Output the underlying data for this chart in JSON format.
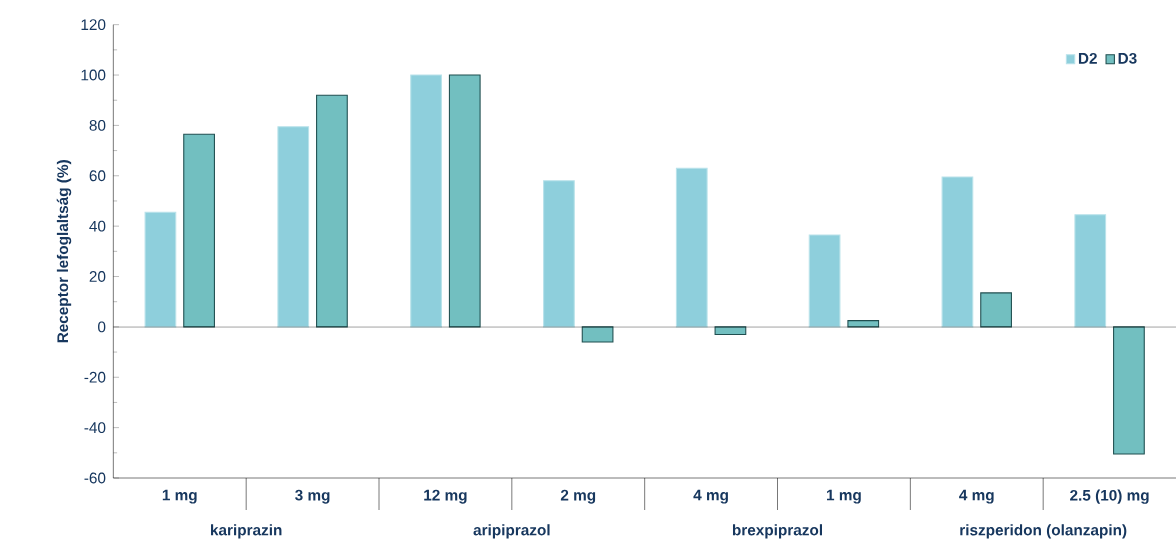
{
  "chart_data": {
    "type": "bar",
    "ylabel": "Receptor lefoglaltság (%)",
    "categories": [
      "1 mg",
      "3 mg",
      "12 mg",
      "2 mg",
      "4 mg",
      "1 mg",
      "4 mg",
      "2.5 (10) mg"
    ],
    "series": [
      {
        "name": "D2",
        "color": "#8ecfdc",
        "values": [
          45.5,
          79.5,
          100,
          58,
          63,
          36.5,
          59.5,
          44.5
        ]
      },
      {
        "name": "D3",
        "color": "#72bfc0",
        "values": [
          76.5,
          92,
          100,
          -6,
          -3,
          2.5,
          13.5,
          -50.5
        ]
      }
    ],
    "ylim": [
      -60,
      120
    ],
    "yticks": [
      -60,
      -40,
      -20,
      0,
      20,
      40,
      60,
      80,
      100,
      120
    ],
    "legend": "top right",
    "annotations": [
      "kariprazin",
      "aripiprazol",
      "brexpiprazol",
      "riszperidon (olanzapin)"
    ]
  }
}
